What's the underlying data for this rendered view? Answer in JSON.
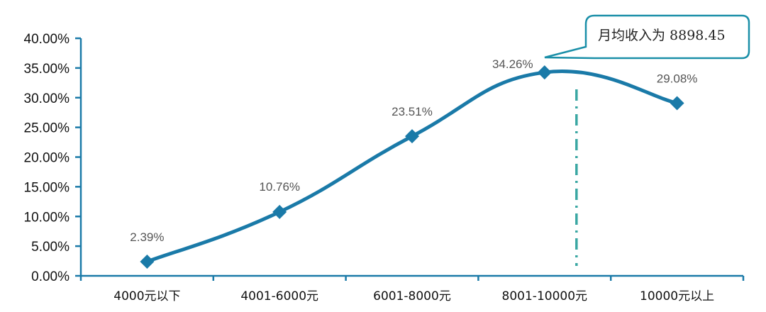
{
  "chart_data": {
    "type": "line",
    "categories": [
      "4000元以下",
      "4001-6000元",
      "6001-8000元",
      "8001-10000元",
      "10000元以上"
    ],
    "values": [
      2.39,
      10.76,
      23.51,
      34.26,
      29.08
    ],
    "data_labels": [
      "2.39%",
      "10.76%",
      "23.51%",
      "34.26%",
      "29.08%"
    ],
    "y_ticks": [
      0,
      5,
      10,
      15,
      20,
      25,
      30,
      35,
      40
    ],
    "y_tick_labels": [
      "0.00%",
      "5.00%",
      "10.00%",
      "15.00%",
      "20.00%",
      "25.00%",
      "30.00%",
      "35.00%",
      "40.00%"
    ],
    "ylim": [
      0,
      40
    ],
    "grid": false,
    "line_color": "#1a7aa8",
    "marker": "diamond",
    "reference_line": {
      "x_value": 8898.45,
      "color": "#3aa7a3",
      "style": "dash-dot"
    },
    "callout": {
      "text": "月均收入为  8898.45",
      "border_color": "#1a8fa8"
    }
  }
}
